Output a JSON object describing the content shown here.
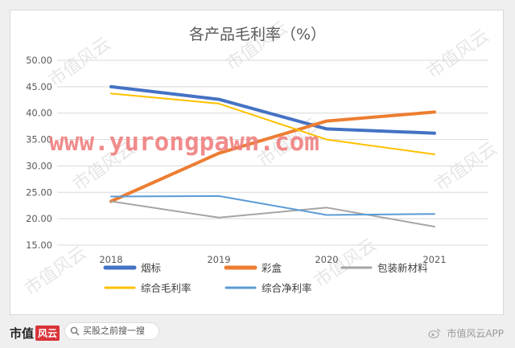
{
  "chart_data": {
    "type": "line",
    "title": "各产品毛利率（%）",
    "categories": [
      "2018",
      "2019",
      "2020",
      "2021"
    ],
    "ylim": [
      15,
      50
    ],
    "yticks": [
      "50.00",
      "45.00",
      "40.00",
      "35.00",
      "30.00",
      "25.00",
      "20.00",
      "15.00"
    ],
    "grid": true,
    "legend_position": "bottom",
    "series": [
      {
        "name": "烟标",
        "values": [
          45.0,
          42.6,
          37.0,
          36.2
        ],
        "color": "#4472c4",
        "width": 4
      },
      {
        "name": "彩盒",
        "values": [
          23.3,
          32.4,
          38.5,
          40.2
        ],
        "color": "#ed7d31",
        "width": 4
      },
      {
        "name": "包装新材料",
        "values": [
          23.3,
          20.2,
          22.1,
          18.5
        ],
        "color": "#a5a5a5",
        "width": 2
      },
      {
        "name": "综合毛利率",
        "values": [
          43.7,
          41.8,
          35.0,
          32.2
        ],
        "color": "#ffc000",
        "width": 2
      },
      {
        "name": "综合净利率",
        "values": [
          24.2,
          24.3,
          20.7,
          20.9
        ],
        "color": "#5b9bd5",
        "width": 2
      }
    ]
  },
  "watermark": {
    "url_text": "www.yurongpawn.com",
    "url_color": "#f08080",
    "tile_text": "市值风云"
  },
  "footer": {
    "brand": "市值",
    "brand_mark": "风云",
    "search_text": "买股之前搜一搜",
    "weibo_text": "市值风云APP"
  }
}
